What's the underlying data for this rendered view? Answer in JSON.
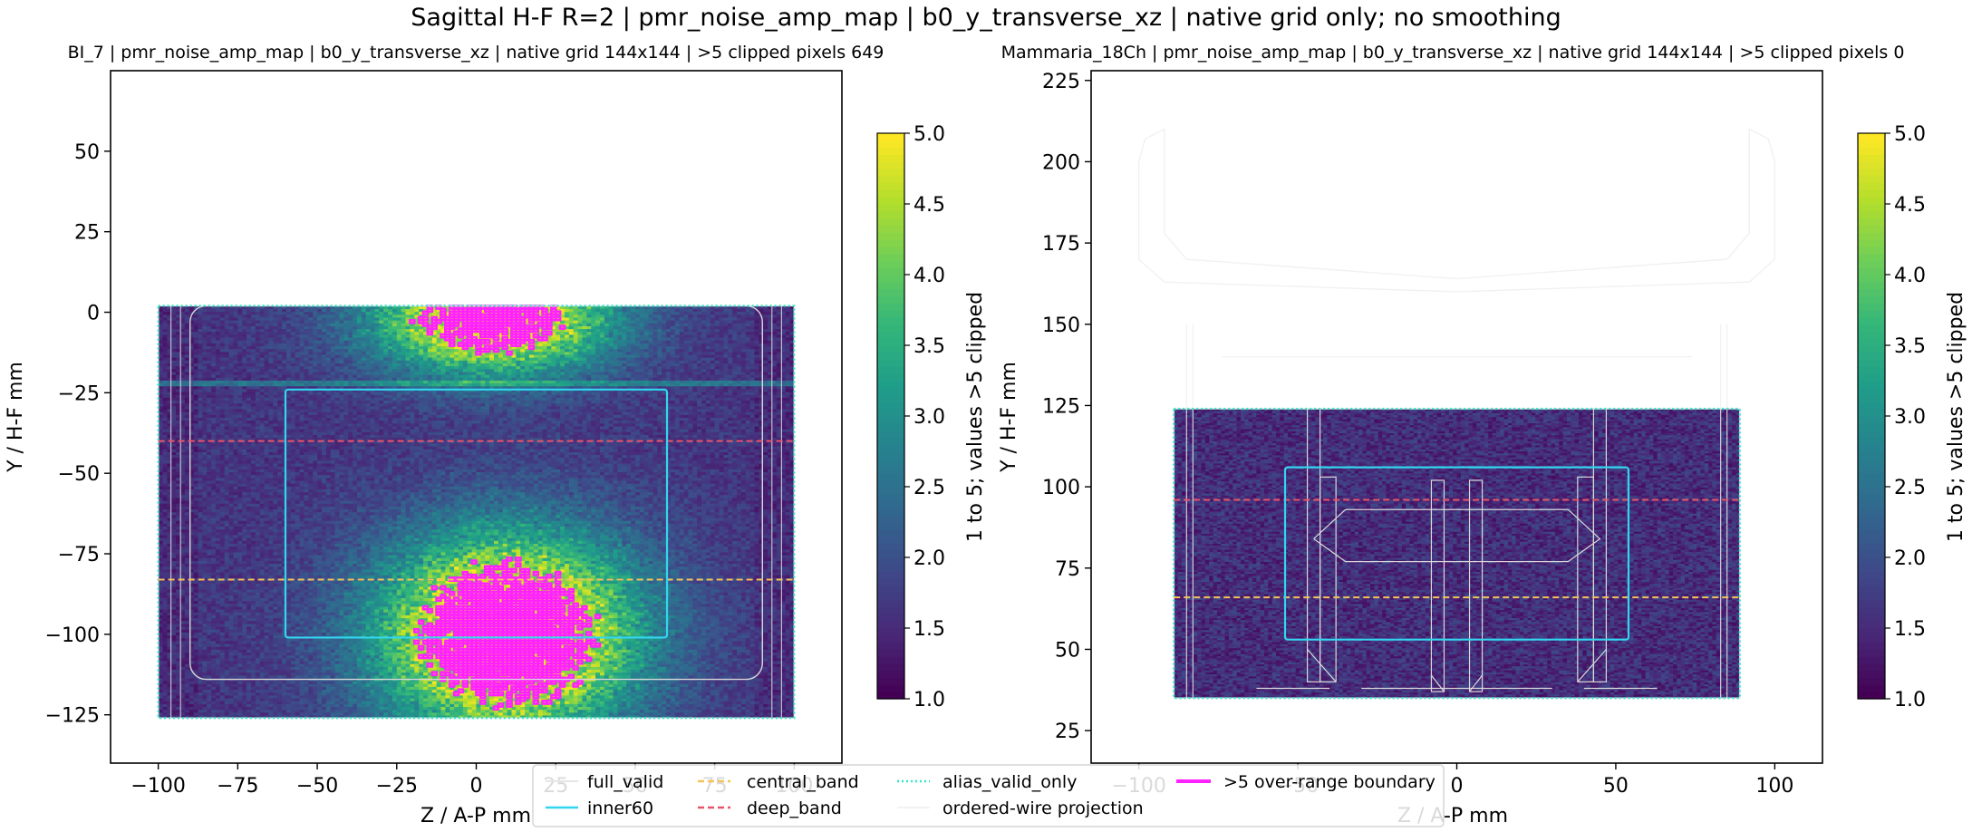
{
  "figure": {
    "suptitle": "Sagittal H-F R=2 | pmr_noise_amp_map | b0_y_transverse_xz | native grid only; no smoothing"
  },
  "colors": {
    "inner60": "#33d6f0",
    "central_band": "#f5c25a",
    "deep_band": "#e8556a",
    "alias_valid_only": "#2ee8c8",
    "full_valid": "#e6e6e6",
    "wire": "#d9d9d9",
    "overrange": "#ff22ff",
    "viridis": [
      "#440154",
      "#482878",
      "#3e4989",
      "#31688e",
      "#26828e",
      "#1f9e89",
      "#35b779",
      "#6ece58",
      "#b5de2b",
      "#fde725"
    ]
  },
  "panels": [
    {
      "title": "BI_7 | pmr_noise_amp_map | b0_y_transverse_xz | native grid 144x144 | >5 clipped pixels 649",
      "xlabel": "Z / A-P mm",
      "ylabel": "Y / H-F mm",
      "xticks": [
        "−100",
        "−75",
        "−50",
        "−25",
        "0",
        "25",
        "50",
        "75",
        "100"
      ],
      "yticks": [
        "50",
        "25",
        "0",
        "−25",
        "−50",
        "−75",
        "−100",
        "−125"
      ],
      "colorbar": {
        "label": "1 to 5; values >5 clipped",
        "ticks": [
          "5.0",
          "4.5",
          "4.0",
          "3.5",
          "3.0",
          "2.5",
          "2.0",
          "1.5",
          "1.0"
        ]
      }
    },
    {
      "title": "Mammaria_18Ch | pmr_noise_amp_map | b0_y_transverse_xz | native grid 144x144 | >5 clipped pixels 0",
      "xlabel": "Z / A-P mm",
      "ylabel": "Y / H-F mm",
      "xticks": [
        "−100",
        "−50",
        "0",
        "50",
        "100"
      ],
      "yticks": [
        "225",
        "200",
        "175",
        "150",
        "125",
        "100",
        "75",
        "50",
        "25"
      ],
      "colorbar": {
        "label": "1 to 5; values >5 clipped",
        "ticks": [
          "5.0",
          "4.5",
          "4.0",
          "3.5",
          "3.0",
          "2.5",
          "2.0",
          "1.5",
          "1.0"
        ]
      }
    }
  ],
  "legend": {
    "items": [
      {
        "label": "full_valid"
      },
      {
        "label": "inner60"
      },
      {
        "label": "central_band"
      },
      {
        "label": "deep_band"
      },
      {
        "label": "alias_valid_only"
      },
      {
        "label": "ordered-wire projection"
      },
      {
        "label": ">5 over-range boundary"
      }
    ]
  },
  "chart_data": [
    {
      "type": "heatmap",
      "title": "BI_7 | pmr_noise_amp_map | b0_y_transverse_xz | native grid 144x144 | >5 clipped pixels 649",
      "xlabel": "Z / A-P mm",
      "ylabel": "Y / H-F mm",
      "xlim": [
        -115,
        115
      ],
      "ylim": [
        -140,
        75
      ],
      "grid": "144x144",
      "data_extent": {
        "z": [
          -100,
          100
        ],
        "y": [
          -126,
          2
        ]
      },
      "color_range": [
        1.0,
        5.0
      ],
      "colorbar_label": "1 to 5; values >5 clipped",
      "clipped_pixels": 649,
      "hotspots": [
        {
          "z": 5,
          "y": -2,
          "peak": 5.5,
          "spread_z": 26,
          "spread_y": 12
        },
        {
          "z": 10,
          "y": -100,
          "peak": 6.0,
          "spread_z": 28,
          "spread_y": 22
        }
      ],
      "stripe_y": -22,
      "overlays": {
        "full_valid": {
          "z": [
            -100,
            100
          ],
          "y": [
            -126,
            2
          ]
        },
        "inner60": {
          "z": [
            -60,
            60
          ],
          "y": [
            -101,
            -24
          ]
        },
        "central_band_y": -83,
        "deep_band_y": -40,
        "alias_valid_only": {
          "z": [
            -100,
            100
          ],
          "y": [
            -126,
            2
          ]
        },
        "ordered_wire_projection": {
          "z": [
            -90,
            90
          ],
          "y": [
            -114,
            2
          ]
        }
      }
    },
    {
      "type": "heatmap",
      "title": "Mammaria_18Ch | pmr_noise_amp_map | b0_y_transverse_xz | native grid 144x144 | >5 clipped pixels 0",
      "xlabel": "Z / A-P mm",
      "ylabel": "Y / H-F mm",
      "xlim": [
        -115,
        115
      ],
      "ylim": [
        15,
        228
      ],
      "grid": "144x144",
      "data_extent": {
        "z": [
          -89,
          89
        ],
        "y": [
          35,
          124
        ]
      },
      "color_range": [
        1.0,
        5.0
      ],
      "colorbar_label": "1 to 5; values >5 clipped",
      "clipped_pixels": 0,
      "overlays": {
        "full_valid": {
          "z": [
            -89,
            89
          ],
          "y": [
            35,
            124
          ]
        },
        "inner60": {
          "z": [
            -54,
            54
          ],
          "y": [
            53,
            106
          ]
        },
        "central_band_y": 66,
        "deep_band_y": 96,
        "alias_valid_only": {
          "z": [
            -89,
            89
          ],
          "y": [
            35,
            124
          ]
        },
        "ordered_wire_projection": {
          "z": [
            -89,
            89
          ],
          "y": [
            37,
            124
          ]
        }
      }
    }
  ]
}
